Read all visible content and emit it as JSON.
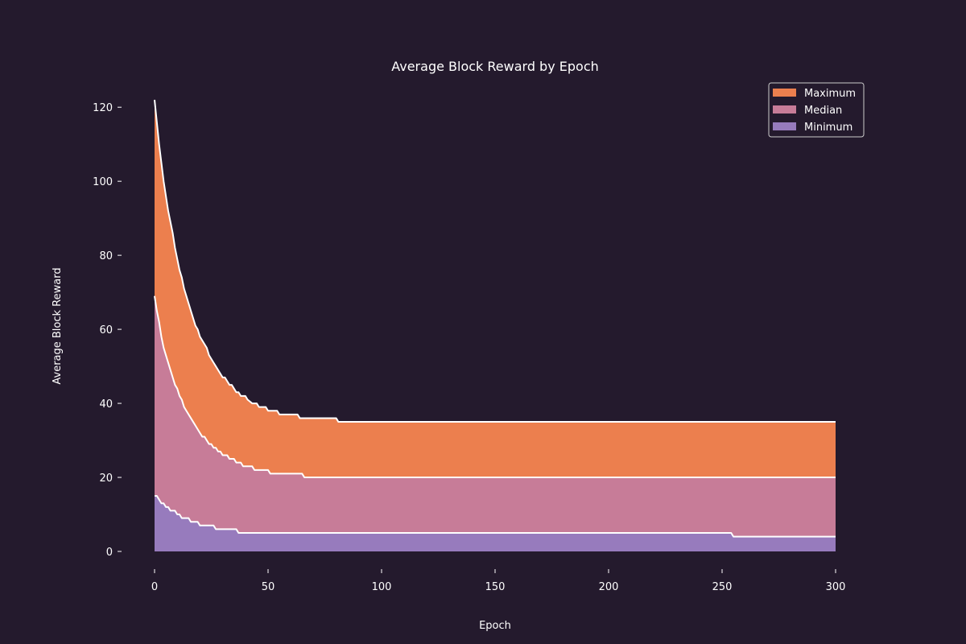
{
  "chart_data": {
    "type": "area",
    "title": "Average Block Reward by Epoch",
    "xlabel": "Epoch",
    "ylabel": "Average Block Reward",
    "xlim": [
      0,
      300
    ],
    "ylim": [
      0,
      122
    ],
    "x_ticks": [
      0,
      50,
      100,
      150,
      200,
      250,
      300
    ],
    "y_ticks": [
      0,
      20,
      40,
      60,
      80,
      100,
      120
    ],
    "grid": false,
    "legend_position": "top-right",
    "stacked": false,
    "series": [
      {
        "name": "Maximum",
        "color": "#ec7f4e",
        "points": [
          [
            0,
            122
          ],
          [
            1,
            116
          ],
          [
            2,
            110
          ],
          [
            3,
            105
          ],
          [
            4,
            100
          ],
          [
            5,
            96
          ],
          [
            6,
            92
          ],
          [
            7,
            89
          ],
          [
            8,
            86
          ],
          [
            9,
            82
          ],
          [
            10,
            79
          ],
          [
            11,
            76
          ],
          [
            12,
            74
          ],
          [
            13,
            71
          ],
          [
            14,
            69
          ],
          [
            15,
            67
          ],
          [
            16,
            65
          ],
          [
            17,
            63
          ],
          [
            18,
            61
          ],
          [
            19,
            60
          ],
          [
            20,
            58
          ],
          [
            21,
            57
          ],
          [
            22,
            56
          ],
          [
            23,
            55
          ],
          [
            24,
            53
          ],
          [
            25,
            52
          ],
          [
            26,
            51
          ],
          [
            27,
            50
          ],
          [
            28,
            49
          ],
          [
            29,
            48
          ],
          [
            30,
            47
          ],
          [
            31,
            47
          ],
          [
            32,
            46
          ],
          [
            33,
            45
          ],
          [
            34,
            45
          ],
          [
            35,
            44
          ],
          [
            36,
            43
          ],
          [
            37,
            43
          ],
          [
            38,
            42
          ],
          [
            40,
            42
          ],
          [
            41,
            41
          ],
          [
            43,
            40
          ],
          [
            45,
            40
          ],
          [
            46,
            39
          ],
          [
            49,
            39
          ],
          [
            50,
            38
          ],
          [
            54,
            38
          ],
          [
            55,
            37
          ],
          [
            63,
            37
          ],
          [
            64,
            36
          ],
          [
            80,
            36
          ],
          [
            81,
            35
          ],
          [
            300,
            35
          ]
        ]
      },
      {
        "name": "Median",
        "color": "#c77c98",
        "points": [
          [
            0,
            69
          ],
          [
            1,
            65
          ],
          [
            2,
            62
          ],
          [
            3,
            58
          ],
          [
            4,
            55
          ],
          [
            5,
            53
          ],
          [
            6,
            51
          ],
          [
            7,
            49
          ],
          [
            8,
            47
          ],
          [
            9,
            45
          ],
          [
            10,
            44
          ],
          [
            11,
            42
          ],
          [
            12,
            41
          ],
          [
            13,
            39
          ],
          [
            14,
            38
          ],
          [
            15,
            37
          ],
          [
            16,
            36
          ],
          [
            17,
            35
          ],
          [
            18,
            34
          ],
          [
            19,
            33
          ],
          [
            20,
            32
          ],
          [
            21,
            31
          ],
          [
            22,
            31
          ],
          [
            23,
            30
          ],
          [
            24,
            29
          ],
          [
            25,
            29
          ],
          [
            26,
            28
          ],
          [
            27,
            28
          ],
          [
            28,
            27
          ],
          [
            29,
            27
          ],
          [
            30,
            26
          ],
          [
            32,
            26
          ],
          [
            33,
            25
          ],
          [
            35,
            25
          ],
          [
            36,
            24
          ],
          [
            38,
            24
          ],
          [
            39,
            23
          ],
          [
            43,
            23
          ],
          [
            44,
            22
          ],
          [
            50,
            22
          ],
          [
            51,
            21
          ],
          [
            65,
            21
          ],
          [
            66,
            20
          ],
          [
            300,
            20
          ]
        ]
      },
      {
        "name": "Minimum",
        "color": "#977bbd",
        "points": [
          [
            0,
            15
          ],
          [
            1,
            15
          ],
          [
            2,
            14
          ],
          [
            3,
            13
          ],
          [
            4,
            13
          ],
          [
            5,
            12
          ],
          [
            6,
            12
          ],
          [
            7,
            11
          ],
          [
            9,
            11
          ],
          [
            10,
            10
          ],
          [
            11,
            10
          ],
          [
            12,
            9
          ],
          [
            15,
            9
          ],
          [
            16,
            8
          ],
          [
            19,
            8
          ],
          [
            20,
            7
          ],
          [
            26,
            7
          ],
          [
            27,
            6
          ],
          [
            36,
            6
          ],
          [
            37,
            5
          ],
          [
            254,
            5
          ],
          [
            255,
            4
          ],
          [
            300,
            4
          ]
        ]
      }
    ]
  }
}
